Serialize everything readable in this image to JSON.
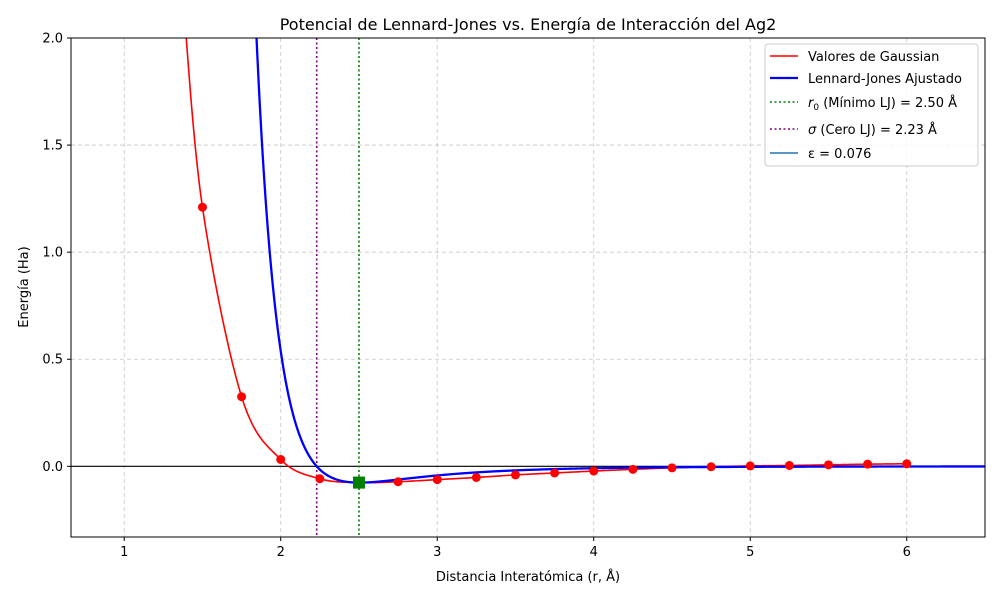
{
  "chart_data": {
    "type": "line",
    "title": "Potencial de Lennard-Jones vs. Energía de Interacción del Ag2",
    "xlabel": "Distancia Interatómica (r, Å)",
    "ylabel": "Energía (Ha)",
    "xlim": [
      0.66,
      6.5
    ],
    "ylim": [
      -0.33,
      2.0
    ],
    "x_ticks": [
      1,
      2,
      3,
      4,
      5,
      6
    ],
    "x_tick_labels": [
      "1",
      "2",
      "3",
      "4",
      "5",
      "6"
    ],
    "y_ticks": [
      0.0,
      0.5,
      1.0,
      1.5,
      2.0
    ],
    "y_tick_labels": [
      "0.0",
      "0.5",
      "1.0",
      "1.5",
      "2.0"
    ],
    "grid": true,
    "legend_position": "top-right",
    "series": [
      {
        "name": "Valores de Gaussian",
        "kind": "points-with-curve",
        "color": "#ff0000",
        "x": [
          1.5,
          1.75,
          2.0,
          2.25,
          2.5,
          2.75,
          3.0,
          3.25,
          3.5,
          3.75,
          4.0,
          4.25,
          4.5,
          4.75,
          5.0,
          5.25,
          5.5,
          5.75,
          6.0
        ],
        "y": [
          1.21,
          0.325,
          0.032,
          -0.058,
          -0.076,
          -0.072,
          -0.062,
          -0.052,
          -0.04,
          -0.031,
          -0.022,
          -0.014,
          -0.007,
          -0.002,
          0.002,
          0.004,
          0.007,
          0.01,
          0.012
        ]
      },
      {
        "name": "Lennard-Jones Ajustado",
        "kind": "lj-curve",
        "color": "#0000ff",
        "epsilon": 0.076,
        "sigma": 2.23
      }
    ],
    "reference_lines": [
      {
        "name": "r0 (Mínimo LJ) = 2.50 Å",
        "x": 2.5,
        "color": "#008000"
      },
      {
        "name": "σ (Cero LJ) = 2.23 Å",
        "x": 2.23,
        "color": "#800080"
      }
    ],
    "marker": {
      "x": 2.5,
      "y": -0.076,
      "color": "#008000"
    },
    "legend": [
      {
        "label": "Valores de Gaussian",
        "style": "solid",
        "color": "#ff0000",
        "rich": false
      },
      {
        "label": "Lennard-Jones Ajustado",
        "style": "solid-thick",
        "color": "#0000ff",
        "rich": false
      },
      {
        "prefix_sym": "r",
        "prefix_sub": "0",
        "label": " (Mínimo LJ) = 2.50 Å",
        "style": "dotted",
        "color": "#008000",
        "rich": true
      },
      {
        "prefix_sym": "σ",
        "prefix_sub": "",
        "label": " (Cero LJ) = 2.23 Å",
        "style": "dotted",
        "color": "#800080",
        "rich": true
      },
      {
        "label": "ε = 0.076",
        "style": "solid",
        "color": "#1f77b4",
        "rich": false
      }
    ]
  }
}
